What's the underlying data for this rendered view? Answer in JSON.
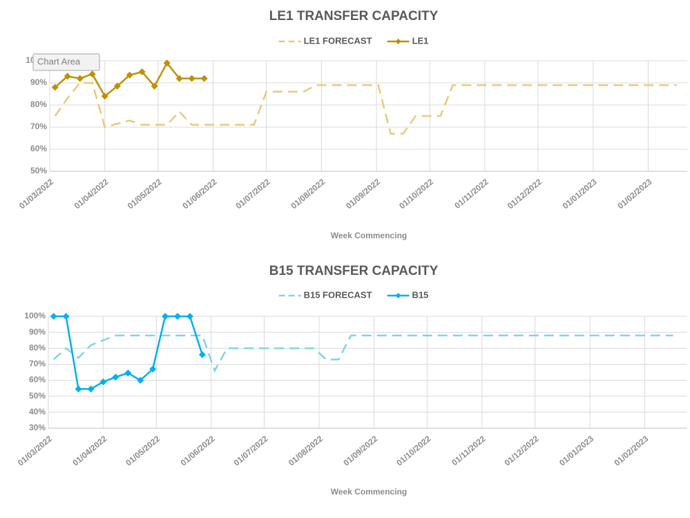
{
  "chart_data": [
    {
      "type": "line",
      "title": "LE1 TRANSFER CAPACITY",
      "x_label": "Week Commencing",
      "annotations": [
        "Chart Area"
      ],
      "x": [
        "04/03/2022",
        "11/03/2022",
        "18/03/2022",
        "25/03/2022",
        "01/04/2022",
        "08/04/2022",
        "15/04/2022",
        "22/04/2022",
        "29/04/2022",
        "06/05/2022",
        "13/05/2022",
        "20/05/2022",
        "27/05/2022",
        "03/06/2022",
        "10/06/2022",
        "17/06/2022",
        "24/06/2022",
        "01/07/2022",
        "08/07/2022",
        "15/07/2022",
        "22/07/2022",
        "29/07/2022",
        "05/08/2022",
        "12/08/2022",
        "19/08/2022",
        "26/08/2022",
        "02/09/2022",
        "09/09/2022",
        "16/09/2022",
        "23/09/2022",
        "30/09/2022",
        "07/10/2022",
        "14/10/2022",
        "21/10/2022",
        "28/10/2022",
        "04/11/2022",
        "11/11/2022",
        "18/11/2022",
        "25/11/2022",
        "02/12/2022",
        "09/12/2022",
        "16/12/2022",
        "23/12/2022",
        "30/12/2022",
        "06/01/2023",
        "13/01/2023",
        "20/01/2023",
        "27/01/2023",
        "03/02/2023",
        "10/02/2023",
        "17/02/2023"
      ],
      "series": [
        {
          "name": "LE1 FORECAST",
          "color": "#e8c97a",
          "dashed": true,
          "values": [
            75,
            83,
            90,
            90,
            70,
            71.5,
            73,
            71,
            71,
            71,
            77,
            71,
            71,
            71,
            71,
            71,
            71,
            86,
            86,
            86,
            86,
            89,
            89,
            89,
            89,
            89,
            89,
            67,
            67,
            75,
            75,
            75,
            89,
            89,
            89,
            89,
            89,
            89,
            89,
            89,
            89,
            89,
            89,
            89,
            89,
            89,
            89,
            89,
            89,
            89,
            89
          ]
        },
        {
          "name": "LE1",
          "color": "#bf9000",
          "marker": "diamond",
          "values": [
            88,
            93,
            92,
            94,
            84,
            88.5,
            93.5,
            95,
            88.5,
            99,
            92,
            92,
            92,
            null,
            null,
            null,
            null,
            null,
            null,
            null,
            null,
            null,
            null,
            null,
            null,
            null,
            null,
            null,
            null,
            null,
            null,
            null,
            null,
            null,
            null,
            null,
            null,
            null,
            null,
            null,
            null,
            null,
            null,
            null,
            null,
            null,
            null,
            null,
            null,
            null,
            null
          ]
        }
      ],
      "xlim": [
        "01/03/2022",
        "23/02/2023"
      ],
      "xticks": [
        "01/03/2022",
        "01/04/2022",
        "01/05/2022",
        "01/06/2022",
        "01/07/2022",
        "01/08/2022",
        "01/09/2022",
        "01/10/2022",
        "01/11/2022",
        "01/12/2022",
        "01/01/2023",
        "01/02/2023"
      ],
      "ylim": [
        50,
        100
      ],
      "yticks": [
        {
          "value": 50,
          "label": "50%"
        },
        {
          "value": 60,
          "label": "60%"
        },
        {
          "value": 70,
          "label": "70%"
        },
        {
          "value": 80,
          "label": "80%"
        },
        {
          "value": 90,
          "label": "90%"
        },
        {
          "value": 100,
          "label": "100%"
        }
      ],
      "grid": true
    },
    {
      "type": "line",
      "title": "B15 TRANSFER CAPACITY",
      "x_label": "Week Commencing",
      "x": [
        "04/03/2022",
        "11/03/2022",
        "18/03/2022",
        "25/03/2022",
        "01/04/2022",
        "08/04/2022",
        "15/04/2022",
        "22/04/2022",
        "29/04/2022",
        "06/05/2022",
        "13/05/2022",
        "20/05/2022",
        "27/05/2022",
        "03/06/2022",
        "10/06/2022",
        "17/06/2022",
        "24/06/2022",
        "01/07/2022",
        "08/07/2022",
        "15/07/2022",
        "22/07/2022",
        "29/07/2022",
        "05/08/2022",
        "12/08/2022",
        "19/08/2022",
        "26/08/2022",
        "02/09/2022",
        "09/09/2022",
        "16/09/2022",
        "23/09/2022",
        "30/09/2022",
        "07/10/2022",
        "14/10/2022",
        "21/10/2022",
        "28/10/2022",
        "04/11/2022",
        "11/11/2022",
        "18/11/2022",
        "25/11/2022",
        "02/12/2022",
        "09/12/2022",
        "16/12/2022",
        "23/12/2022",
        "30/12/2022",
        "06/01/2023",
        "13/01/2023",
        "20/01/2023",
        "27/01/2023",
        "03/02/2023",
        "10/02/2023",
        "17/02/2023"
      ],
      "series": [
        {
          "name": "B15 FORECAST",
          "color": "#7fd3ee",
          "dashed": true,
          "values": [
            73,
            80,
            74,
            82,
            85,
            88,
            88,
            88,
            88,
            88,
            88,
            88,
            88,
            66,
            80,
            80,
            80,
            80,
            80,
            80,
            80,
            80,
            73,
            73,
            88,
            88,
            88,
            88,
            88,
            88,
            88,
            88,
            88,
            88,
            88,
            88,
            88,
            88,
            88,
            88,
            88,
            88,
            88,
            88,
            88,
            88,
            88,
            88,
            88,
            88,
            88
          ]
        },
        {
          "name": "B15",
          "color": "#00b0f0",
          "marker": "diamond",
          "values": [
            100,
            100,
            54.5,
            54.5,
            59,
            62,
            64.5,
            60,
            67,
            100,
            100,
            100,
            76,
            null,
            null,
            null,
            null,
            null,
            null,
            null,
            null,
            null,
            null,
            null,
            null,
            null,
            null,
            null,
            null,
            null,
            null,
            null,
            null,
            null,
            null,
            null,
            null,
            null,
            null,
            null,
            null,
            null,
            null,
            null,
            null,
            null,
            null,
            null,
            null,
            null,
            null
          ]
        }
      ],
      "xlim": [
        "01/03/2022",
        "25/02/2023"
      ],
      "xticks": [
        "01/03/2022",
        "01/04/2022",
        "01/05/2022",
        "01/06/2022",
        "01/07/2022",
        "01/08/2022",
        "01/09/2022",
        "01/10/2022",
        "01/11/2022",
        "01/12/2022",
        "01/01/2023",
        "01/02/2023"
      ],
      "ylim": [
        30,
        100
      ],
      "yticks": [
        {
          "value": 30,
          "label": "30%"
        },
        {
          "value": 40,
          "label": "40%"
        },
        {
          "value": 50,
          "label": "50%"
        },
        {
          "value": 60,
          "label": "60%"
        },
        {
          "value": 70,
          "label": "70%"
        },
        {
          "value": 80,
          "label": "80%"
        },
        {
          "value": 90,
          "label": "90%"
        },
        {
          "value": 100,
          "label": "100%"
        }
      ],
      "grid": true
    }
  ]
}
